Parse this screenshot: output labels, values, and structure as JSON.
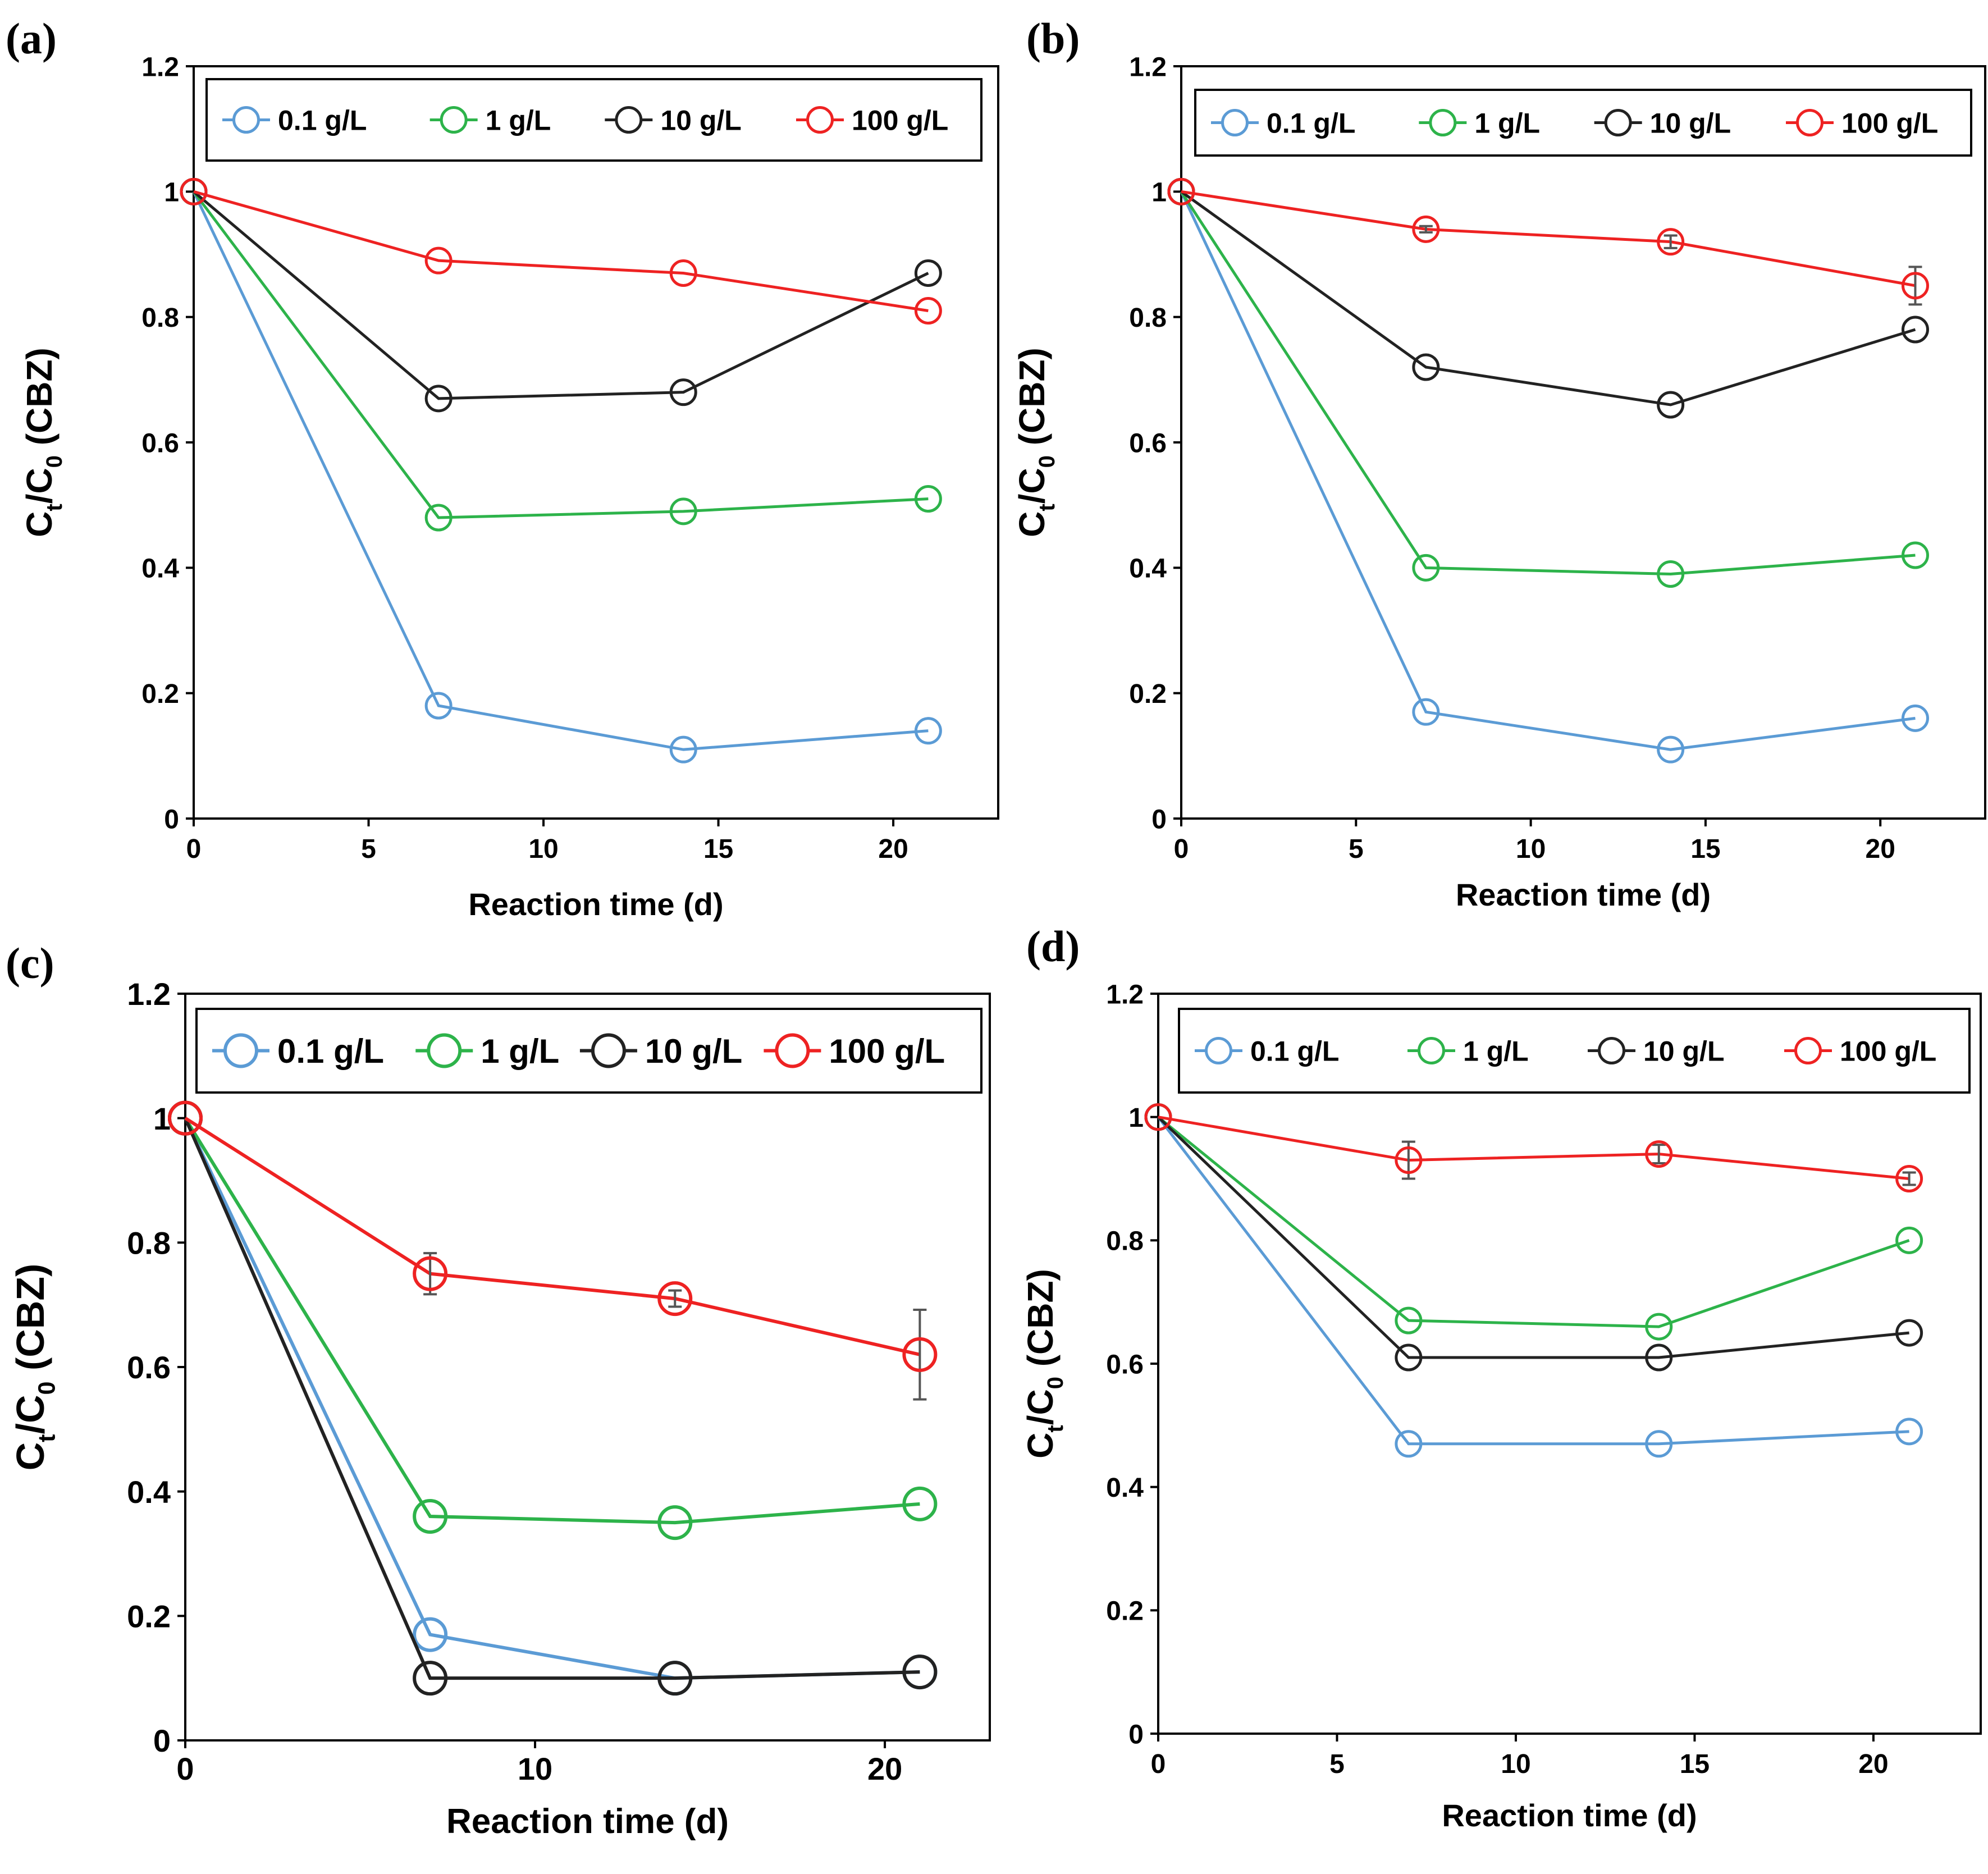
{
  "colors": {
    "0.1 g/L": "#5b9bd5",
    "1 g/L": "#2db34a",
    "10 g/L": "#222222",
    "100 g/L": "#ee2222",
    "axis": "#000000",
    "errorbar": "#555555"
  },
  "chart_data": [
    {
      "panel": "(a)",
      "type": "line",
      "xlabel": "Reaction time (d)",
      "ylabel": "Ct/C0 (CBZ)",
      "ylabel_parts": {
        "main": "C",
        "sub1": "t",
        "slash": "/C",
        "sub2": "0",
        "rest": " (CBZ)"
      },
      "xlim": [
        0,
        23
      ],
      "ylim": [
        0,
        1.2
      ],
      "xticks": [
        0,
        5,
        10,
        15,
        20
      ],
      "yticks": [
        0,
        0.2,
        0.4,
        0.6,
        0.8,
        1,
        1.2
      ],
      "ytick_labels": [
        "0",
        "0.2",
        "0.4",
        "0.6",
        "0.8",
        "1",
        "1.2"
      ],
      "x": [
        0,
        7,
        14,
        21
      ],
      "series": [
        {
          "name": "0.1 g/L",
          "values": [
            1.0,
            0.18,
            0.11,
            0.14
          ]
        },
        {
          "name": "1 g/L",
          "values": [
            1.0,
            0.48,
            0.49,
            0.51
          ]
        },
        {
          "name": "10 g/L",
          "values": [
            1.0,
            0.67,
            0.68,
            0.87
          ]
        },
        {
          "name": "100 g/L",
          "values": [
            1.0,
            0.89,
            0.87,
            0.81
          ]
        }
      ]
    },
    {
      "panel": "(b)",
      "type": "line",
      "xlabel": "Reaction time (d)",
      "ylabel": "Ct/C0 (CBZ)",
      "ylabel_parts": {
        "main": "C",
        "sub1": "t",
        "slash": "/C",
        "sub2": "0",
        "rest": " (CBZ)"
      },
      "xlim": [
        0,
        23
      ],
      "ylim": [
        0,
        1.2
      ],
      "xticks": [
        0,
        5,
        10,
        15,
        20
      ],
      "yticks": [
        0,
        0.2,
        0.4,
        0.6,
        0.8,
        1,
        1.2
      ],
      "ytick_labels": [
        "0",
        "0.2",
        "0.4",
        "0.6",
        "0.8",
        "1",
        "1.2"
      ],
      "x": [
        0,
        7,
        14,
        21
      ],
      "series": [
        {
          "name": "0.1 g/L",
          "values": [
            1.0,
            0.17,
            0.11,
            0.16
          ]
        },
        {
          "name": "1 g/L",
          "values": [
            1.0,
            0.4,
            0.39,
            0.42
          ]
        },
        {
          "name": "10 g/L",
          "values": [
            1.0,
            0.72,
            0.66,
            0.78
          ]
        },
        {
          "name": "100 g/L",
          "values": [
            1.0,
            0.94,
            0.92,
            0.85
          ],
          "errors": [
            0,
            0.005,
            0.01,
            0.03
          ]
        }
      ]
    },
    {
      "panel": "(c)",
      "type": "line",
      "xlabel": "Reaction time (d)",
      "ylabel": "Ct/C0 (CBZ)",
      "ylabel_parts": {
        "main": "C",
        "sub1": "t",
        "slash": "/C",
        "sub2": "0",
        "rest": " (CBZ)"
      },
      "xlim": [
        0,
        23
      ],
      "ylim": [
        0,
        1.2
      ],
      "xticks": [
        0,
        10,
        20
      ],
      "yticks": [
        0,
        0.2,
        0.4,
        0.6,
        0.8,
        1,
        1.2
      ],
      "ytick_labels": [
        "0",
        "0.2",
        "0.4",
        "0.6",
        "0.8",
        "1",
        "1.2"
      ],
      "x": [
        0,
        7,
        14,
        21
      ],
      "series": [
        {
          "name": "0.1 g/L",
          "values": [
            1.0,
            0.17,
            0.1,
            0.11
          ]
        },
        {
          "name": "1 g/L",
          "values": [
            1.0,
            0.36,
            0.35,
            0.38
          ]
        },
        {
          "name": "10 g/L",
          "values": [
            1.0,
            0.1,
            0.1,
            0.11
          ]
        },
        {
          "name": "100 g/L",
          "values": [
            1.0,
            0.75,
            0.71,
            0.62
          ],
          "errors": [
            0,
            0.033,
            0.013,
            0.072
          ]
        }
      ]
    },
    {
      "panel": "(d)",
      "type": "line",
      "xlabel": "Reaction time (d)",
      "ylabel": "Ct/C0 (CBZ)",
      "ylabel_parts": {
        "main": "C",
        "sub1": "t",
        "slash": "/C",
        "sub2": "0",
        "rest": " (CBZ)"
      },
      "xlim": [
        0,
        23
      ],
      "ylim": [
        0,
        1.2
      ],
      "xticks": [
        0,
        5,
        10,
        15,
        20
      ],
      "yticks": [
        0,
        0.2,
        0.4,
        0.6,
        0.8,
        1,
        1.2
      ],
      "ytick_labels": [
        "0",
        "0.2",
        "0.4",
        "0.6",
        "0.8",
        "1",
        "1.2"
      ],
      "x": [
        0,
        7,
        14,
        21
      ],
      "series": [
        {
          "name": "0.1 g/L",
          "values": [
            1.0,
            0.47,
            0.47,
            0.49
          ]
        },
        {
          "name": "1 g/L",
          "values": [
            1.0,
            0.67,
            0.66,
            0.8
          ]
        },
        {
          "name": "10 g/L",
          "values": [
            1.0,
            0.61,
            0.61,
            0.65
          ]
        },
        {
          "name": "100 g/L",
          "values": [
            1.0,
            0.93,
            0.94,
            0.9
          ],
          "errors": [
            0,
            0.03,
            0.015,
            0.01
          ]
        }
      ]
    }
  ]
}
